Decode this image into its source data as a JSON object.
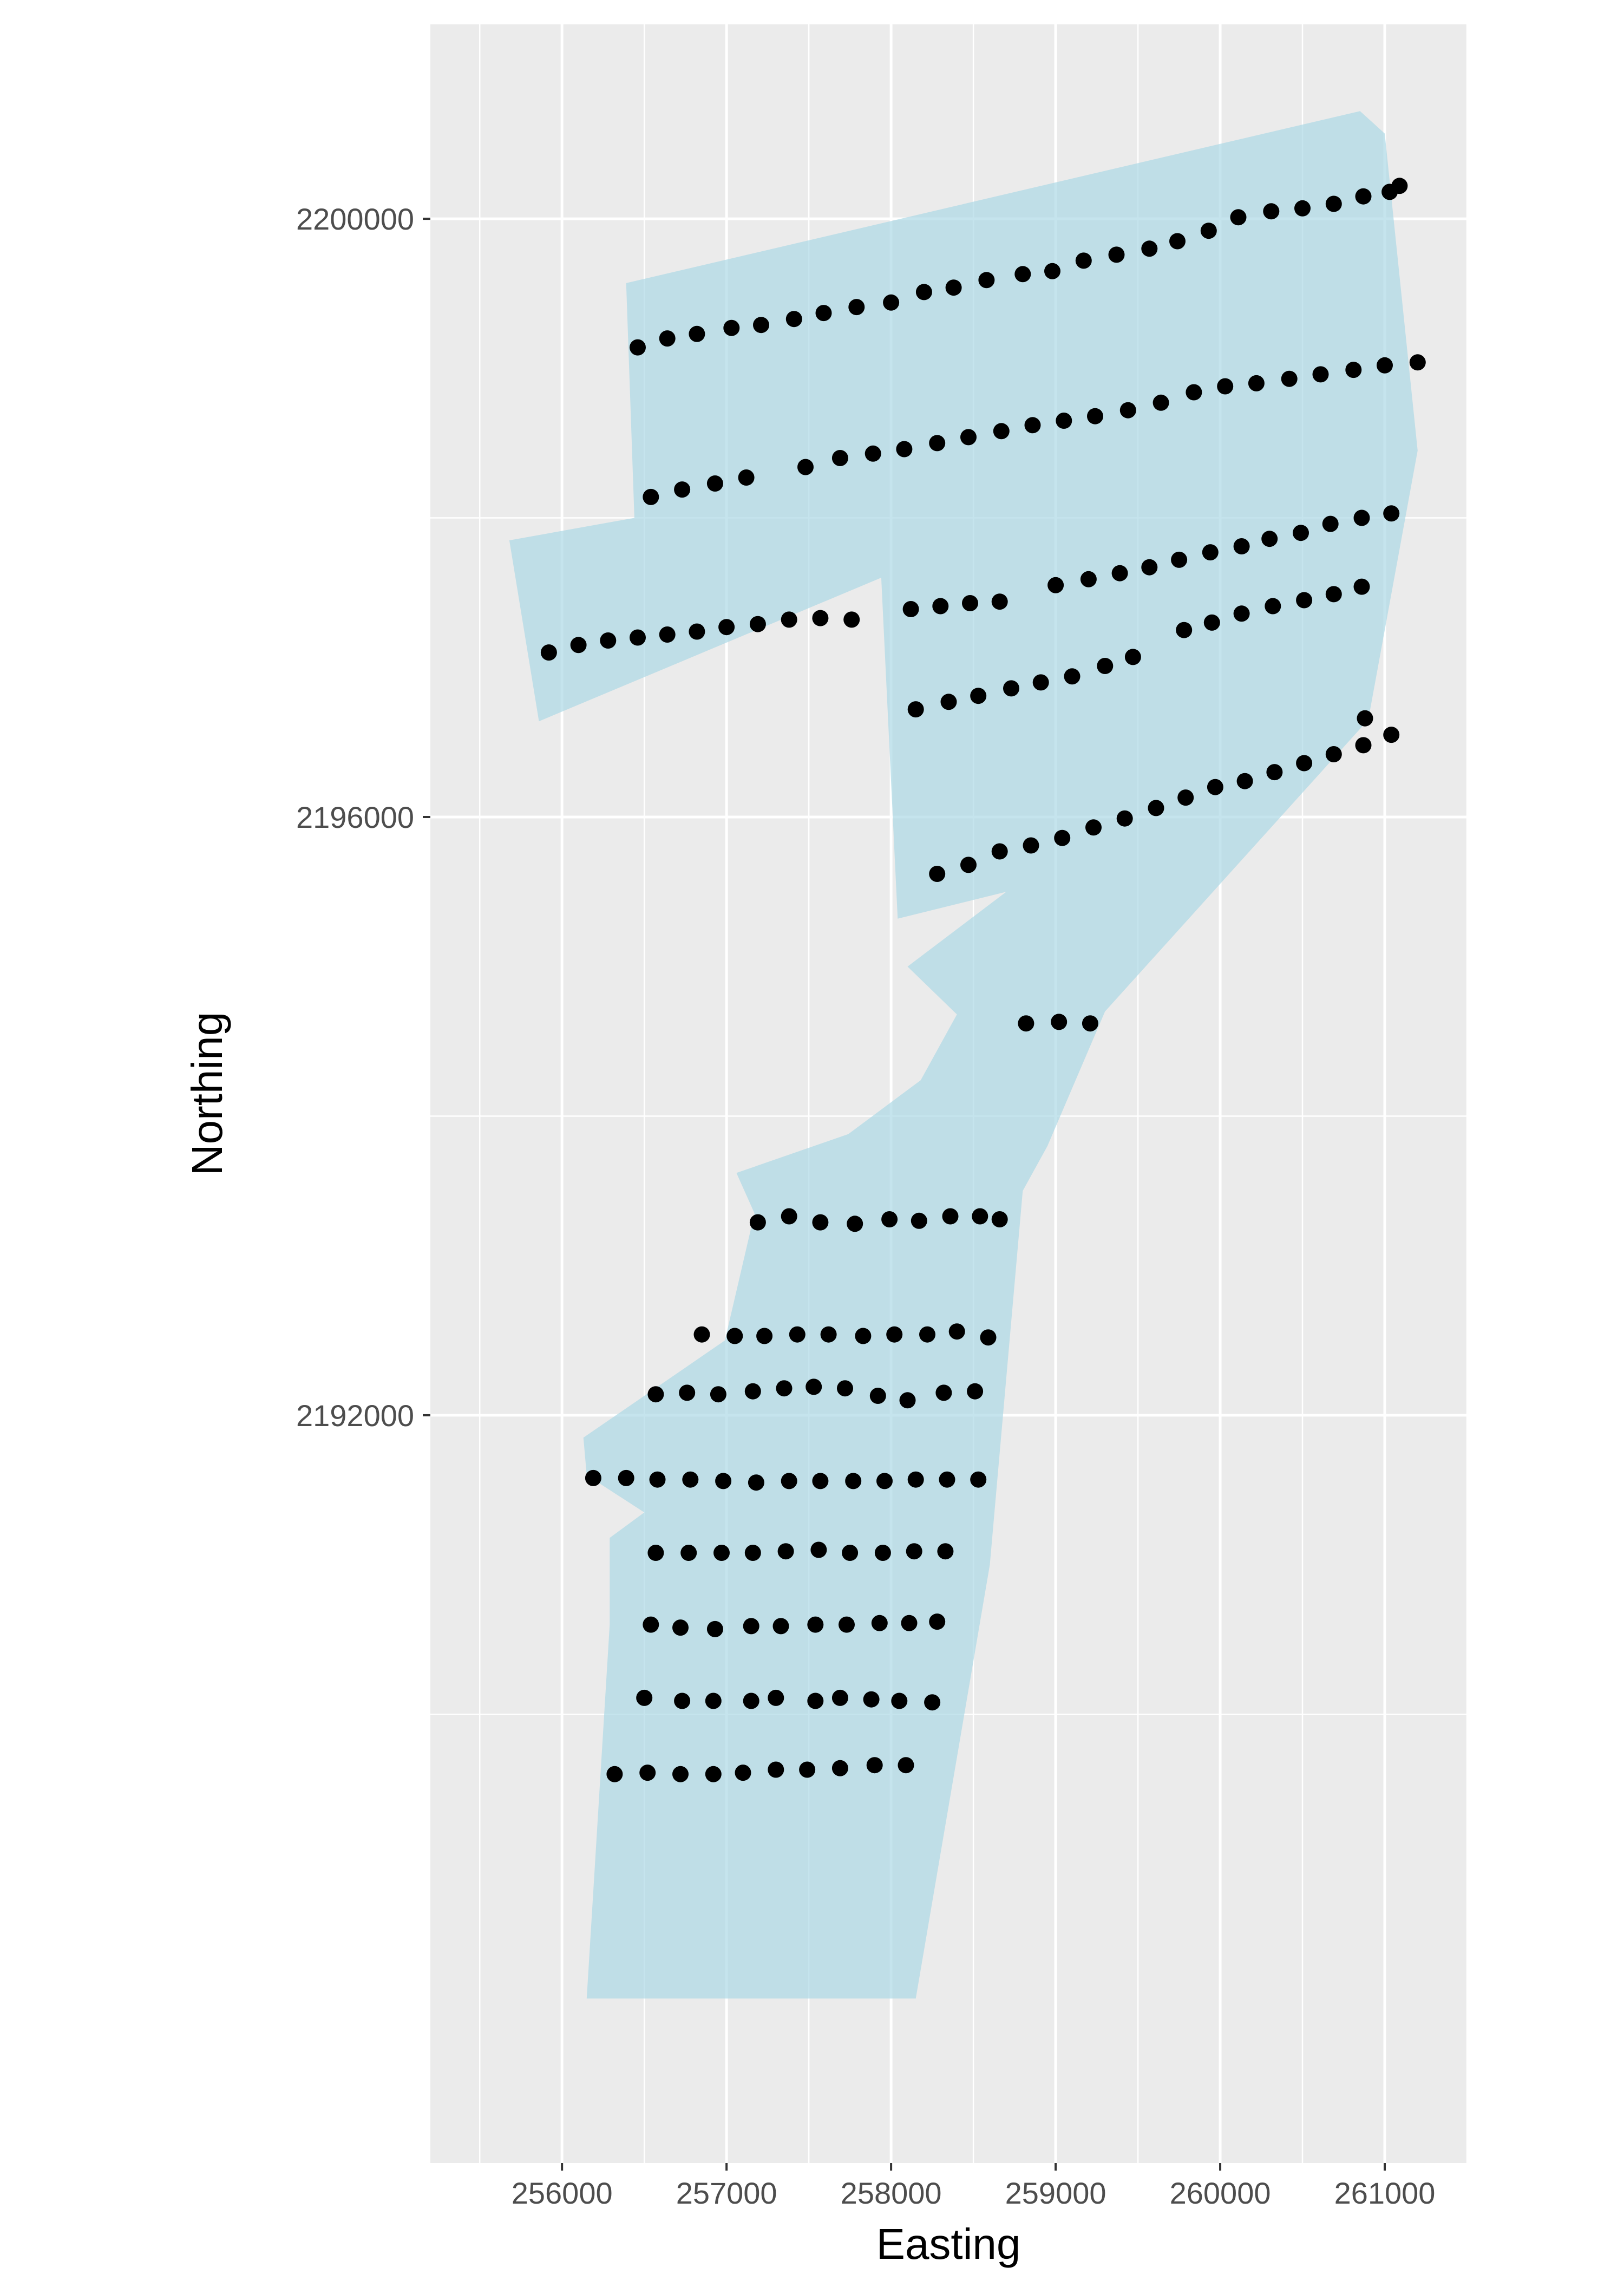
{
  "chart_data": {
    "type": "scatter",
    "xlabel": "Easting",
    "ylabel": "Northing",
    "xlim": [
      255200,
      261500
    ],
    "ylim": [
      2187000,
      2201300
    ],
    "x_ticks": [
      256000,
      257000,
      258000,
      259000,
      260000,
      261000
    ],
    "y_ticks": [
      2192000,
      2196000,
      2200000
    ],
    "x_tick_labels": [
      "256000",
      "257000",
      "258000",
      "259000",
      "260000",
      "261000"
    ],
    "y_tick_labels": [
      "2192000",
      "2196000",
      "2200000"
    ],
    "grid": true,
    "colors": {
      "panel": "#ebebeb",
      "grid": "#ffffff",
      "polygon_fill": "#add8e6",
      "point": "#000000"
    },
    "polygon": [
      [
        256390,
        2199570
      ],
      [
        260850,
        2200720
      ],
      [
        261000,
        2200570
      ],
      [
        261200,
        2198450
      ],
      [
        260900,
        2196650
      ],
      [
        259300,
        2194700
      ],
      [
        258950,
        2193800
      ],
      [
        258800,
        2193500
      ],
      [
        258600,
        2191000
      ],
      [
        258150,
        2188100
      ],
      [
        256150,
        2188100
      ],
      [
        256290,
        2190600
      ],
      [
        256290,
        2191180
      ],
      [
        256500,
        2191350
      ],
      [
        256150,
        2191600
      ],
      [
        256130,
        2191850
      ],
      [
        256990,
        2192500
      ],
      [
        257170,
        2193350
      ],
      [
        257060,
        2193620
      ],
      [
        257740,
        2193880
      ],
      [
        258180,
        2194240
      ],
      [
        258400,
        2194680
      ],
      [
        258100,
        2195000
      ],
      [
        258700,
        2195500
      ],
      [
        258040,
        2195320
      ],
      [
        257940,
        2197600
      ],
      [
        255860,
        2196640
      ],
      [
        255680,
        2197850
      ],
      [
        256440,
        2198000
      ]
    ],
    "series": [
      {
        "points": [
          [
            256460,
            2199140
          ],
          [
            256640,
            2199200
          ],
          [
            256820,
            2199230
          ],
          [
            257030,
            2199270
          ],
          [
            257210,
            2199290
          ],
          [
            257410,
            2199330
          ],
          [
            257590,
            2199370
          ],
          [
            257790,
            2199410
          ],
          [
            258000,
            2199440
          ],
          [
            258200,
            2199510
          ],
          [
            258380,
            2199540
          ],
          [
            258580,
            2199590
          ],
          [
            258800,
            2199630
          ],
          [
            258980,
            2199650
          ],
          [
            259170,
            2199720
          ],
          [
            259370,
            2199760
          ],
          [
            259570,
            2199800
          ],
          [
            259740,
            2199850
          ],
          [
            259930,
            2199920
          ],
          [
            260110,
            2200010
          ],
          [
            260310,
            2200050
          ],
          [
            260500,
            2200070
          ],
          [
            260690,
            2200100
          ],
          [
            260870,
            2200150
          ],
          [
            261030,
            2200180
          ],
          [
            261090,
            2200220
          ]
        ]
      },
      {
        "points": [
          [
            256540,
            2198140
          ],
          [
            256730,
            2198190
          ],
          [
            256930,
            2198230
          ],
          [
            257120,
            2198270
          ],
          [
            257480,
            2198340
          ],
          [
            257690,
            2198400
          ],
          [
            257890,
            2198430
          ],
          [
            258080,
            2198460
          ],
          [
            258280,
            2198500
          ],
          [
            258470,
            2198540
          ],
          [
            258670,
            2198580
          ],
          [
            258860,
            2198620
          ],
          [
            259050,
            2198650
          ],
          [
            259240,
            2198680
          ],
          [
            259440,
            2198720
          ],
          [
            259640,
            2198770
          ],
          [
            259840,
            2198840
          ],
          [
            260030,
            2198880
          ],
          [
            260220,
            2198900
          ],
          [
            260420,
            2198930
          ],
          [
            260610,
            2198960
          ],
          [
            260810,
            2198990
          ],
          [
            261000,
            2199020
          ],
          [
            261200,
            2199040
          ]
        ]
      },
      {
        "points": [
          [
            255920,
            2197100
          ],
          [
            256100,
            2197150
          ],
          [
            256280,
            2197180
          ],
          [
            256460,
            2197200
          ],
          [
            256640,
            2197220
          ],
          [
            256820,
            2197240
          ],
          [
            257000,
            2197270
          ],
          [
            257190,
            2197290
          ],
          [
            257380,
            2197320
          ],
          [
            257570,
            2197330
          ],
          [
            257760,
            2197320
          ],
          [
            258120,
            2197390
          ],
          [
            258300,
            2197410
          ],
          [
            258480,
            2197430
          ],
          [
            258660,
            2197440
          ],
          [
            259000,
            2197550
          ],
          [
            259200,
            2197590
          ],
          [
            259390,
            2197630
          ],
          [
            259570,
            2197670
          ],
          [
            259750,
            2197720
          ],
          [
            259940,
            2197770
          ],
          [
            260130,
            2197810
          ],
          [
            260300,
            2197860
          ],
          [
            260490,
            2197900
          ],
          [
            260670,
            2197960
          ],
          [
            260860,
            2198000
          ],
          [
            261040,
            2198030
          ]
        ]
      },
      {
        "points": [
          [
            258150,
            2196720
          ],
          [
            258350,
            2196770
          ],
          [
            258530,
            2196810
          ],
          [
            258730,
            2196860
          ],
          [
            258910,
            2196900
          ],
          [
            259100,
            2196940
          ],
          [
            259300,
            2197010
          ],
          [
            259470,
            2197070
          ],
          [
            259780,
            2197250
          ],
          [
            259950,
            2197300
          ],
          [
            260130,
            2197360
          ],
          [
            260320,
            2197410
          ],
          [
            260510,
            2197450
          ],
          [
            260690,
            2197490
          ],
          [
            260860,
            2197540
          ]
        ]
      },
      {
        "points": [
          [
            258280,
            2195620
          ],
          [
            258470,
            2195680
          ],
          [
            258660,
            2195770
          ],
          [
            258850,
            2195810
          ],
          [
            259040,
            2195860
          ],
          [
            259230,
            2195930
          ],
          [
            259420,
            2195990
          ],
          [
            259610,
            2196060
          ],
          [
            259790,
            2196130
          ],
          [
            259970,
            2196200
          ],
          [
            260150,
            2196240
          ],
          [
            260330,
            2196300
          ],
          [
            260510,
            2196360
          ],
          [
            260690,
            2196420
          ],
          [
            260870,
            2196480
          ],
          [
            261040,
            2196550
          ],
          [
            260880,
            2196660
          ]
        ]
      },
      {
        "points": [
          [
            258820,
            2194620
          ],
          [
            259020,
            2194630
          ],
          [
            259210,
            2194620
          ]
        ]
      },
      {
        "points": [
          [
            257190,
            2193290
          ],
          [
            257380,
            2193330
          ],
          [
            257570,
            2193290
          ],
          [
            257780,
            2193280
          ],
          [
            257990,
            2193310
          ],
          [
            258170,
            2193300
          ],
          [
            258360,
            2193330
          ],
          [
            258540,
            2193330
          ],
          [
            258660,
            2193310
          ]
        ]
      },
      {
        "points": [
          [
            256850,
            2192540
          ],
          [
            257050,
            2192530
          ],
          [
            257230,
            2192530
          ],
          [
            257430,
            2192540
          ],
          [
            257620,
            2192540
          ],
          [
            257830,
            2192530
          ],
          [
            258020,
            2192540
          ],
          [
            258220,
            2192540
          ],
          [
            258400,
            2192560
          ],
          [
            258590,
            2192520
          ]
        ]
      },
      {
        "points": [
          [
            256570,
            2192140
          ],
          [
            256760,
            2192150
          ],
          [
            256950,
            2192140
          ],
          [
            257160,
            2192160
          ],
          [
            257350,
            2192180
          ],
          [
            257530,
            2192190
          ],
          [
            257720,
            2192180
          ],
          [
            257920,
            2192130
          ],
          [
            258100,
            2192100
          ],
          [
            258320,
            2192150
          ],
          [
            258510,
            2192160
          ]
        ]
      },
      {
        "points": [
          [
            256190,
            2191580
          ],
          [
            256390,
            2191580
          ],
          [
            256580,
            2191570
          ],
          [
            256780,
            2191570
          ],
          [
            256980,
            2191560
          ],
          [
            257180,
            2191550
          ],
          [
            257380,
            2191560
          ],
          [
            257570,
            2191560
          ],
          [
            257770,
            2191560
          ],
          [
            257960,
            2191560
          ],
          [
            258150,
            2191570
          ],
          [
            258340,
            2191570
          ],
          [
            258530,
            2191570
          ]
        ]
      },
      {
        "points": [
          [
            256570,
            2191080
          ],
          [
            256770,
            2191080
          ],
          [
            256970,
            2191080
          ],
          [
            257160,
            2191080
          ],
          [
            257360,
            2191090
          ],
          [
            257560,
            2191100
          ],
          [
            257750,
            2191080
          ],
          [
            257950,
            2191080
          ],
          [
            258140,
            2191090
          ],
          [
            258330,
            2191090
          ]
        ]
      },
      {
        "points": [
          [
            256540,
            2190600
          ],
          [
            256720,
            2190580
          ],
          [
            256930,
            2190570
          ],
          [
            257150,
            2190590
          ],
          [
            257330,
            2190590
          ],
          [
            257540,
            2190600
          ],
          [
            257730,
            2190600
          ],
          [
            257930,
            2190610
          ],
          [
            258110,
            2190610
          ],
          [
            258280,
            2190620
          ]
        ]
      },
      {
        "points": [
          [
            256500,
            2190110
          ],
          [
            256730,
            2190090
          ],
          [
            256920,
            2190090
          ],
          [
            257150,
            2190090
          ],
          [
            257300,
            2190110
          ],
          [
            257540,
            2190090
          ],
          [
            257690,
            2190110
          ],
          [
            257880,
            2190100
          ],
          [
            258050,
            2190090
          ],
          [
            258250,
            2190080
          ]
        ]
      },
      {
        "points": [
          [
            256320,
            2189600
          ],
          [
            256520,
            2189610
          ],
          [
            256720,
            2189600
          ],
          [
            256920,
            2189600
          ],
          [
            257100,
            2189610
          ],
          [
            257300,
            2189630
          ],
          [
            257490,
            2189630
          ],
          [
            257690,
            2189640
          ],
          [
            257900,
            2189660
          ],
          [
            258090,
            2189660
          ]
        ]
      }
    ]
  }
}
